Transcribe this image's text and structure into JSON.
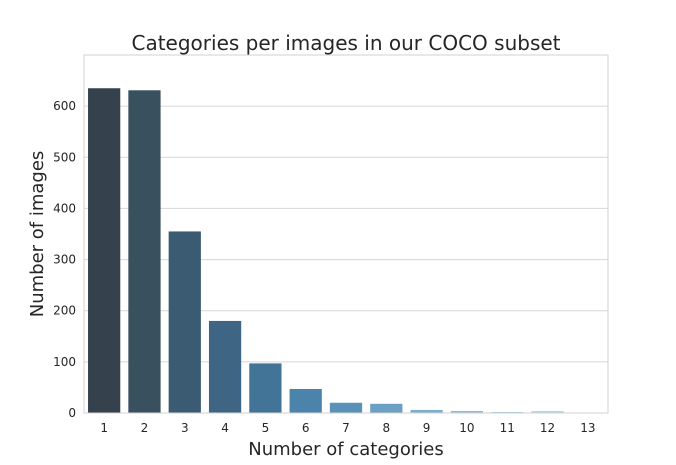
{
  "chart_data": {
    "type": "bar",
    "title": "Categories per images in our COCO subset",
    "xlabel": "Number of categories",
    "ylabel": "Number of images",
    "categories": [
      "1",
      "2",
      "3",
      "4",
      "5",
      "6",
      "7",
      "8",
      "9",
      "10",
      "11",
      "12",
      "13"
    ],
    "values": [
      635,
      631,
      355,
      180,
      97,
      47,
      20,
      18,
      6,
      4,
      2,
      4,
      1
    ],
    "ylim": [
      0,
      700
    ],
    "yticks": [
      0,
      100,
      200,
      300,
      400,
      500,
      600
    ],
    "ytick_labels": [
      "0",
      "100",
      "200",
      "300",
      "400",
      "500",
      "600"
    ],
    "grid": true,
    "legend": "none",
    "colors": [
      "#35424d",
      "#39505f",
      "#3b5b72",
      "#3e6684",
      "#417497",
      "#4c83ab",
      "#5a91b8",
      "#6aa0c4",
      "#7bafd0",
      "#8cbdd8",
      "#9ecbe1",
      "#b2d8ea",
      "#c7e4f2"
    ]
  }
}
